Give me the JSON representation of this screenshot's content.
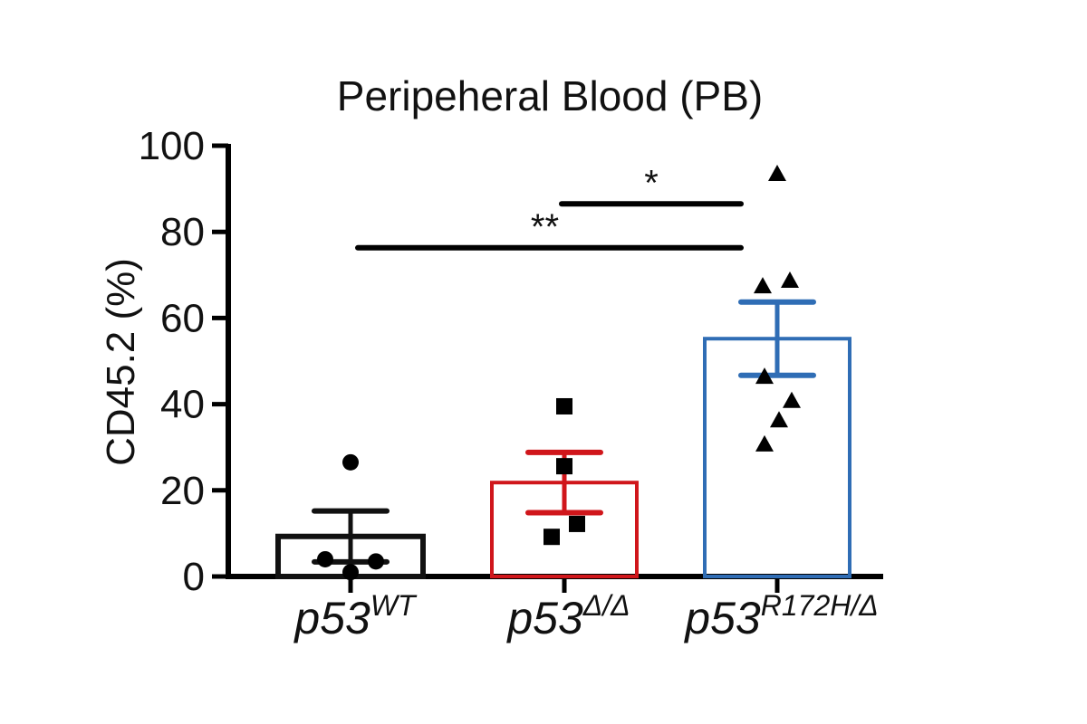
{
  "chart_data": {
    "type": "bar",
    "title": "Peripeheral Blood (PB)",
    "xlabel": "",
    "ylabel": "CD45.2 (%)",
    "ylim": [
      0,
      100
    ],
    "yticks": [
      0,
      20,
      40,
      60,
      80,
      100
    ],
    "grid": false,
    "categories": [
      {
        "base": "p53",
        "sup": "WT"
      },
      {
        "base": "p53",
        "sup": "Δ/Δ"
      },
      {
        "base": "p53",
        "sup": "R172H/Δ"
      }
    ],
    "series": [
      {
        "name": "p53WT",
        "mean": 9.3,
        "sem": 5.9,
        "color": "#111111",
        "marker": "circle",
        "points": [
          26.5,
          4,
          3.5,
          1
        ]
      },
      {
        "name": "p53Δ/Δ",
        "mean": 21.8,
        "sem": 7.0,
        "color": "#d0161b",
        "marker": "square",
        "points": [
          39.5,
          25.6,
          12.2,
          9.2
        ]
      },
      {
        "name": "p53R172H/Δ",
        "mean": 55.2,
        "sem": 8.5,
        "color": "#2f6db5",
        "marker": "triangle",
        "points": [
          93.5,
          68.7,
          67.4,
          46.4,
          40.8,
          36.3,
          30.7
        ]
      }
    ],
    "annotations": [
      {
        "label": "**",
        "from": 0,
        "to": 2,
        "y": 76.3
      },
      {
        "label": "*",
        "from": 1,
        "to": 2,
        "y": 86.5
      }
    ]
  }
}
